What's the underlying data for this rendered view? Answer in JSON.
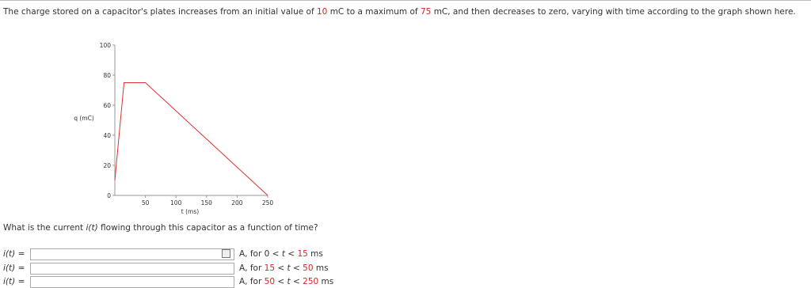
{
  "problem": {
    "parts": [
      "The charge stored on a capacitor's plates increases from an initial value of",
      "10",
      "mC to a maximum of",
      "75",
      "mC, and then decreases to zero, varying with time according to the graph shown here."
    ]
  },
  "chart_data": {
    "type": "line",
    "x": [
      0,
      15,
      50,
      250
    ],
    "values": [
      10,
      75,
      75,
      0
    ],
    "color": "#e03030",
    "xlim": [
      0,
      250
    ],
    "xticks": [
      50,
      100,
      150,
      200,
      250
    ],
    "ylim": [
      0,
      100
    ],
    "yticks": [
      0,
      20,
      40,
      60,
      80,
      100
    ],
    "xlabel": "t (ms)",
    "ylabel": "q (mC)"
  },
  "question": {
    "before": "What is the current",
    "fn": "i(t)",
    "after": "flowing through this capacitor as a function of time?"
  },
  "answers": [
    {
      "fn": "i(t)",
      "eq": "=",
      "unit": "A, for",
      "lower": 0,
      "lt1": "<",
      "var": "t",
      "lt2": "<",
      "upper": 15,
      "time_unit": "ms"
    },
    {
      "fn": "i(t)",
      "eq": "=",
      "unit": "A, for",
      "lower": 15,
      "lt1": "<",
      "var": "t",
      "lt2": "<",
      "upper": 50,
      "time_unit": "ms"
    },
    {
      "fn": "i(t)",
      "eq": "=",
      "unit": "A, for",
      "lower": 50,
      "lt1": "<",
      "var": "t",
      "lt2": "<",
      "upper": 250,
      "time_unit": "ms"
    }
  ]
}
